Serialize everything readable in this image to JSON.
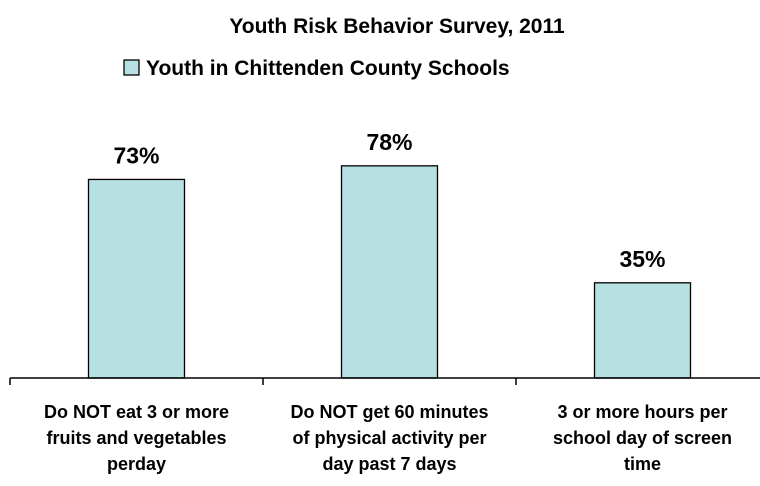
{
  "chart_data": {
    "type": "bar",
    "title": "Youth Risk Behavior Survey, 2011",
    "legend": {
      "position": "top",
      "entries": [
        "Youth in Chittenden County Schools"
      ]
    },
    "categories": [
      [
        "Do NOT eat 3 or more",
        "fruits and vegetables",
        "perday"
      ],
      [
        "Do NOT get 60 minutes",
        "of physical activity per",
        "day past 7 days"
      ],
      [
        "3 or more hours per",
        "school day of screen",
        "time"
      ]
    ],
    "series": [
      {
        "name": "Youth in Chittenden County Schools",
        "values": [
          73,
          78,
          35
        ],
        "labels": [
          "73%",
          "78%",
          "35%"
        ]
      }
    ],
    "ylim": [
      0,
      100
    ],
    "grid": false,
    "colors": {
      "bar_fill": "#b7e0e3",
      "bar_stroke": "#000000",
      "axis": "#000000"
    }
  }
}
